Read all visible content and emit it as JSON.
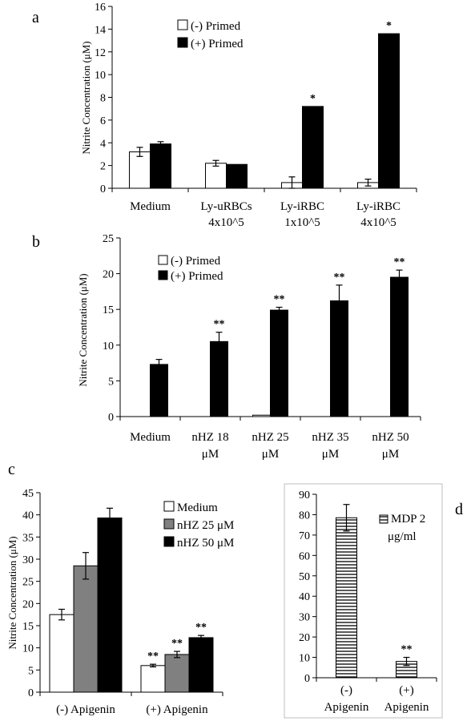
{
  "colors": {
    "primed_neg": "#ffffff",
    "primed_pos": "#000000",
    "medium": "#ffffff",
    "nhz25": "#808080",
    "nhz50": "#000000",
    "mdp": "hatch-horizontal"
  },
  "chart_data": [
    {
      "panel": "a",
      "type": "bar",
      "ylabel": "Nitrite Concentration (μM)",
      "ylim": [
        0,
        16
      ],
      "yticks": [
        "0",
        "2",
        "4",
        "6",
        "8",
        "10",
        "12",
        "14",
        "16"
      ],
      "categories": [
        [
          "Medium"
        ],
        [
          "Ly-uRBCs",
          "4x10^5"
        ],
        [
          "Ly-iRBC",
          "1x10^5"
        ],
        [
          "Ly-iRBC",
          "4x10^5"
        ]
      ],
      "series": [
        {
          "name": "(-) Primed",
          "values": [
            3.2,
            2.2,
            0.5,
            0.5
          ],
          "errors": [
            0.4,
            0.25,
            0.5,
            0.3
          ],
          "annotations": [
            "",
            "",
            "",
            ""
          ]
        },
        {
          "name": "(+) Primed",
          "values": [
            3.9,
            2.1,
            7.2,
            13.6
          ],
          "errors": [
            0.2,
            0,
            0,
            0
          ],
          "annotations": [
            "",
            "",
            "*",
            "*"
          ]
        }
      ],
      "legend": [
        "(-) Primed",
        "(+) Primed"
      ]
    },
    {
      "panel": "b",
      "type": "bar",
      "ylabel": "Nitrite Concentration (μM)",
      "ylim": [
        0,
        25
      ],
      "yticks": [
        "0",
        "5",
        "10",
        "15",
        "20",
        "25"
      ],
      "categories": [
        [
          "Medium"
        ],
        [
          "nHZ 18",
          "μM"
        ],
        [
          "nHZ 25",
          "μM"
        ],
        [
          "nHZ 35",
          "μM"
        ],
        [
          "nHZ 50",
          "μM"
        ]
      ],
      "series": [
        {
          "name": "(-) Primed",
          "values": [
            0,
            0,
            0.2,
            0,
            0
          ],
          "errors": [
            0,
            0,
            0,
            0,
            0
          ],
          "annotations": [
            "",
            "",
            "",
            "",
            ""
          ]
        },
        {
          "name": "(+) Primed",
          "values": [
            7.3,
            10.5,
            14.9,
            16.2,
            19.5
          ],
          "errors": [
            0.7,
            1.3,
            0.4,
            2.2,
            1.0
          ],
          "annotations": [
            "",
            "**",
            "**",
            "**",
            "**"
          ]
        }
      ],
      "legend": [
        "(-) Primed",
        "(+) Primed"
      ]
    },
    {
      "panel": "c",
      "type": "bar",
      "ylabel": "Nitrite Concentration (μM)",
      "ylim": [
        0,
        45
      ],
      "yticks": [
        "0",
        "5",
        "10",
        "15",
        "20",
        "25",
        "30",
        "35",
        "40",
        "45"
      ],
      "categories": [
        [
          "(-) Apigenin"
        ],
        [
          "(+) Apigenin"
        ]
      ],
      "series": [
        {
          "name": "Medium",
          "values": [
            17.5,
            6.0
          ],
          "errors": [
            1.2,
            0.3
          ],
          "annotations": [
            "",
            "**"
          ]
        },
        {
          "name": "nHZ 25 μM",
          "values": [
            28.5,
            8.5
          ],
          "errors": [
            3.0,
            0.7
          ],
          "annotations": [
            "",
            "**"
          ]
        },
        {
          "name": "nHZ 50 μM",
          "values": [
            39.3,
            12.3
          ],
          "errors": [
            2.2,
            0.5
          ],
          "annotations": [
            "",
            "**"
          ]
        }
      ],
      "legend": [
        "Medium",
        "nHZ 25 μM",
        "nHZ 50 μM"
      ]
    },
    {
      "panel": "d",
      "type": "bar",
      "ylabel": "",
      "ylim": [
        0,
        90
      ],
      "yticks": [
        "0",
        "10",
        "20",
        "30",
        "40",
        "50",
        "60",
        "70",
        "80",
        "90"
      ],
      "categories": [
        [
          "(-)",
          "Apigenin"
        ],
        [
          "(+)",
          "Apigenin"
        ]
      ],
      "series": [
        {
          "name": "MDP 2 μg/ml",
          "values": [
            78.5,
            8.0
          ],
          "errors": [
            6.5,
            2.0
          ],
          "annotations": [
            "",
            "**"
          ]
        }
      ],
      "legend": [
        "MDP 2",
        "μg/ml"
      ]
    }
  ]
}
